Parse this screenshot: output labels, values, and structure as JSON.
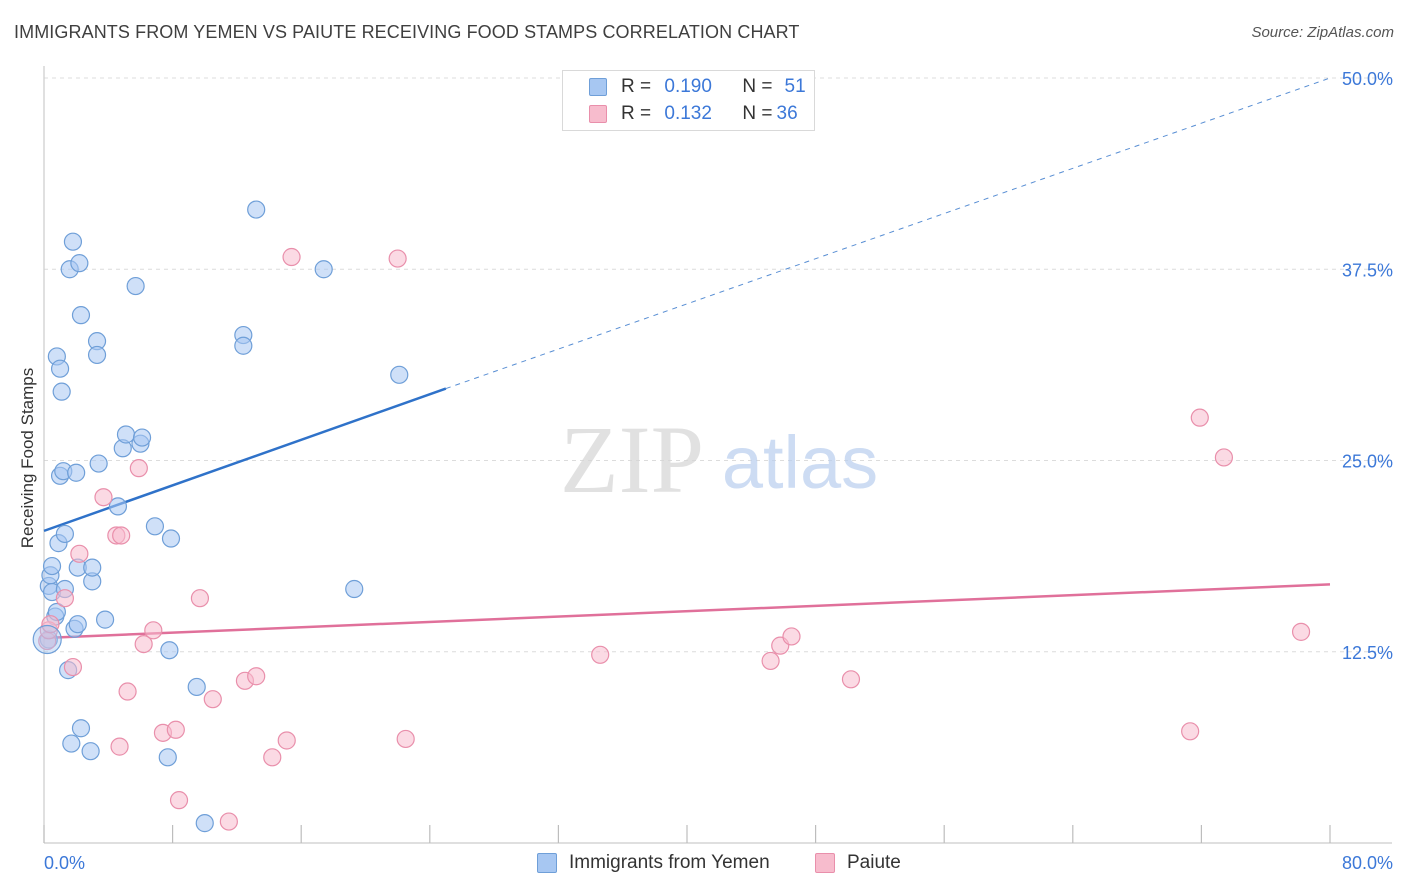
{
  "title": "IMMIGRANTS FROM YEMEN VS PAIUTE RECEIVING FOOD STAMPS CORRELATION CHART",
  "source": "Source: ZipAtlas.com",
  "watermark": {
    "zip": "ZIP",
    "atlas": "atlas"
  },
  "legend": {
    "rows": [
      {
        "r_label": "R =",
        "r_value": "0.190",
        "n_label": "N =",
        "n_value": "51"
      },
      {
        "r_label": "R =",
        "r_value": "0.132",
        "n_label": "N =",
        "n_value": "36"
      }
    ]
  },
  "colors": {
    "yemen_fill": "#a7c7f2",
    "yemen_stroke": "#6f9fd8",
    "yemen_line": "#2f72c9",
    "paiute_fill": "#f7bccd",
    "paiute_stroke": "#e98fab",
    "paiute_line": "#e0709a",
    "tick_label": "#3c78d8",
    "grid": "#dcdcdc"
  },
  "chart_data": {
    "type": "scatter",
    "title": "IMMIGRANTS FROM YEMEN VS PAIUTE RECEIVING FOOD STAMPS CORRELATION CHART",
    "xlabel": "",
    "ylabel": "Receiving Food Stamps",
    "xlim": [
      0,
      80
    ],
    "ylim": [
      0,
      50
    ],
    "x_ticks": [
      0,
      8,
      16,
      24,
      32,
      40,
      48,
      56,
      64,
      72,
      80
    ],
    "x_tick_labels": {
      "min": "0.0%",
      "max": "80.0%"
    },
    "y_ticks": [
      12.5,
      25.0,
      37.5,
      50.0
    ],
    "y_tick_labels": [
      "12.5%",
      "25.0%",
      "37.5%",
      "50.0%"
    ],
    "series": [
      {
        "name": "Immigrants from Yemen",
        "r": 0.19,
        "n": 51,
        "trend": {
          "x0": 0,
          "y0": 20.4,
          "x1": 25,
          "y1": 29.7,
          "dashed_to_x": 80,
          "dashed_to_y": 50.0
        },
        "points": [
          [
            0.3,
            13.3
          ],
          [
            0.3,
            16.8
          ],
          [
            0.4,
            17.5
          ],
          [
            0.5,
            16.4
          ],
          [
            0.5,
            18.1
          ],
          [
            0.7,
            14.8
          ],
          [
            0.8,
            15.1
          ],
          [
            0.8,
            31.8
          ],
          [
            0.9,
            19.6
          ],
          [
            1.0,
            24.0
          ],
          [
            1.0,
            31.0
          ],
          [
            1.1,
            29.5
          ],
          [
            1.2,
            24.3
          ],
          [
            1.3,
            20.2
          ],
          [
            1.3,
            16.6
          ],
          [
            1.5,
            11.3
          ],
          [
            1.6,
            37.5
          ],
          [
            1.7,
            6.5
          ],
          [
            1.8,
            39.3
          ],
          [
            1.9,
            14.0
          ],
          [
            2.0,
            24.2
          ],
          [
            2.1,
            18.0
          ],
          [
            2.2,
            37.9
          ],
          [
            2.3,
            34.5
          ],
          [
            2.3,
            7.5
          ],
          [
            2.9,
            6.0
          ],
          [
            3.0,
            17.1
          ],
          [
            3.0,
            18.0
          ],
          [
            3.3,
            32.8
          ],
          [
            3.3,
            31.9
          ],
          [
            3.4,
            24.8
          ],
          [
            3.8,
            14.6
          ],
          [
            4.6,
            22.0
          ],
          [
            4.9,
            25.8
          ],
          [
            5.1,
            26.7
          ],
          [
            5.7,
            36.4
          ],
          [
            6.0,
            26.1
          ],
          [
            6.1,
            26.5
          ],
          [
            6.9,
            20.7
          ],
          [
            7.7,
            5.6
          ],
          [
            7.8,
            12.6
          ],
          [
            7.9,
            19.9
          ],
          [
            9.5,
            10.2
          ],
          [
            10.0,
            1.3
          ],
          [
            12.4,
            33.2
          ],
          [
            12.4,
            32.5
          ],
          [
            13.2,
            41.4
          ],
          [
            17.4,
            37.5
          ],
          [
            19.3,
            16.6
          ],
          [
            22.1,
            30.6
          ],
          [
            2.1,
            14.3
          ]
        ]
      },
      {
        "name": "Paiute",
        "r": 0.132,
        "n": 36,
        "trend": {
          "x0": 0,
          "y0": 13.4,
          "x1": 80,
          "y1": 16.9
        },
        "points": [
          [
            0.2,
            13.2
          ],
          [
            0.3,
            13.9
          ],
          [
            0.4,
            14.3
          ],
          [
            1.3,
            16.0
          ],
          [
            1.8,
            11.5
          ],
          [
            2.2,
            18.9
          ],
          [
            3.7,
            22.6
          ],
          [
            4.5,
            20.1
          ],
          [
            4.7,
            6.3
          ],
          [
            4.8,
            20.1
          ],
          [
            5.2,
            9.9
          ],
          [
            5.9,
            24.5
          ],
          [
            6.2,
            13.0
          ],
          [
            6.8,
            13.9
          ],
          [
            7.4,
            7.2
          ],
          [
            8.2,
            7.4
          ],
          [
            8.4,
            2.8
          ],
          [
            9.7,
            16.0
          ],
          [
            10.5,
            9.4
          ],
          [
            11.5,
            1.4
          ],
          [
            12.5,
            10.6
          ],
          [
            13.2,
            10.9
          ],
          [
            14.2,
            5.6
          ],
          [
            15.1,
            6.7
          ],
          [
            15.4,
            38.3
          ],
          [
            22.0,
            38.2
          ],
          [
            22.5,
            6.8
          ],
          [
            34.6,
            12.3
          ],
          [
            45.2,
            11.9
          ],
          [
            45.8,
            12.9
          ],
          [
            46.5,
            13.5
          ],
          [
            50.2,
            10.7
          ],
          [
            71.3,
            7.3
          ],
          [
            71.9,
            27.8
          ],
          [
            73.4,
            25.2
          ],
          [
            78.2,
            13.8
          ]
        ]
      }
    ]
  },
  "bottom_legend": [
    {
      "label": "Immigrants from Yemen"
    },
    {
      "label": "Paiute"
    }
  ]
}
